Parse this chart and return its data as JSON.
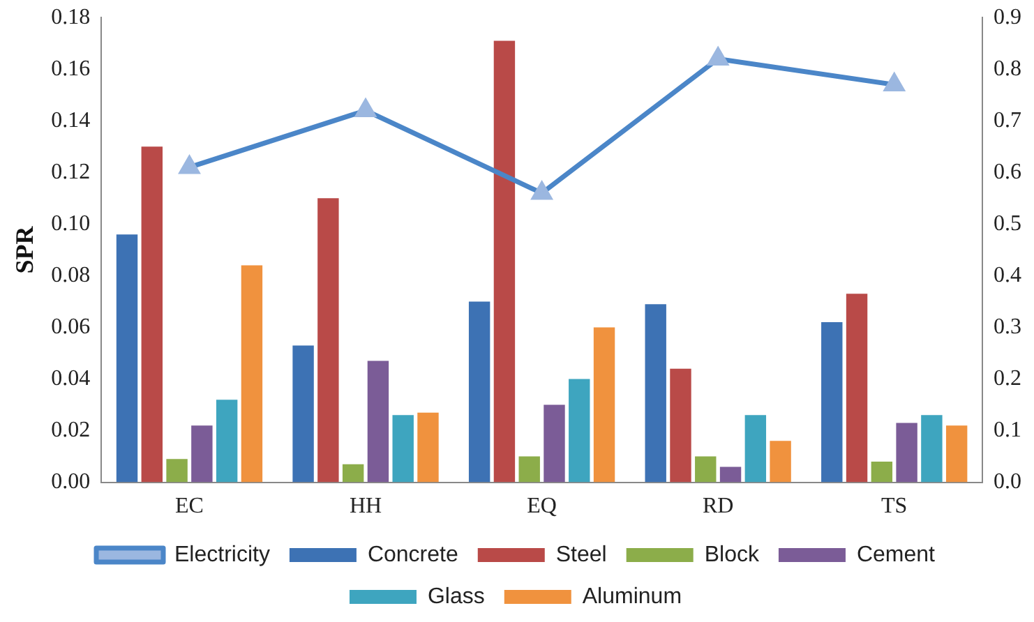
{
  "chart_data": {
    "type": "bar",
    "ylabel": "SPR",
    "categories": [
      "EC",
      "HH",
      "EQ",
      "RD",
      "TS"
    ],
    "ylim": [
      0,
      0.18
    ],
    "yticks": [
      {
        "value": 0,
        "label": "0.00"
      },
      {
        "value": 0.02,
        "label": "0.02"
      },
      {
        "value": 0.04,
        "label": "0.04"
      },
      {
        "value": 0.06,
        "label": "0.06"
      },
      {
        "value": 0.08,
        "label": "0.08"
      },
      {
        "value": 0.1,
        "label": "0.10"
      },
      {
        "value": 0.12,
        "label": "0.12"
      },
      {
        "value": 0.14,
        "label": "0.14"
      },
      {
        "value": 0.16,
        "label": "0.16"
      },
      {
        "value": 0.18,
        "label": "0.18"
      }
    ],
    "y2lim": [
      0,
      0.9
    ],
    "y2ticks": [
      {
        "value": 0,
        "label": "0.0"
      },
      0.1,
      0.2,
      0.3,
      0.4,
      0.5,
      0.6,
      0.7,
      0.8,
      0.9
    ],
    "grid": false,
    "legend": "bottom",
    "series": [
      {
        "name": "Concrete",
        "color": "#3d72b4",
        "values": [
          0.096,
          0.053,
          0.07,
          0.069,
          0.062
        ]
      },
      {
        "name": "Steel",
        "color": "#b94a48",
        "values": [
          0.13,
          0.11,
          0.171,
          0.044,
          0.073
        ]
      },
      {
        "name": "Block",
        "color": "#8cad4a",
        "values": [
          0.009,
          0.007,
          0.01,
          0.01,
          0.008
        ]
      },
      {
        "name": "Cement",
        "color": "#7b5c97",
        "values": [
          0.022,
          0.047,
          0.03,
          0.006,
          0.023
        ]
      },
      {
        "name": "Glass",
        "color": "#3ea5bf",
        "values": [
          0.032,
          0.026,
          0.04,
          0.026,
          0.026
        ]
      },
      {
        "name": "Aluminum",
        "color": "#f0923e",
        "values": [
          0.084,
          0.027,
          0.06,
          0.016,
          0.022
        ]
      },
      {
        "name": "Electricity",
        "color": "#4b86c8",
        "type": "line",
        "axis": "y2",
        "marker": "triangle",
        "values": [
          0.61,
          0.72,
          0.56,
          0.82,
          0.77
        ]
      }
    ]
  }
}
